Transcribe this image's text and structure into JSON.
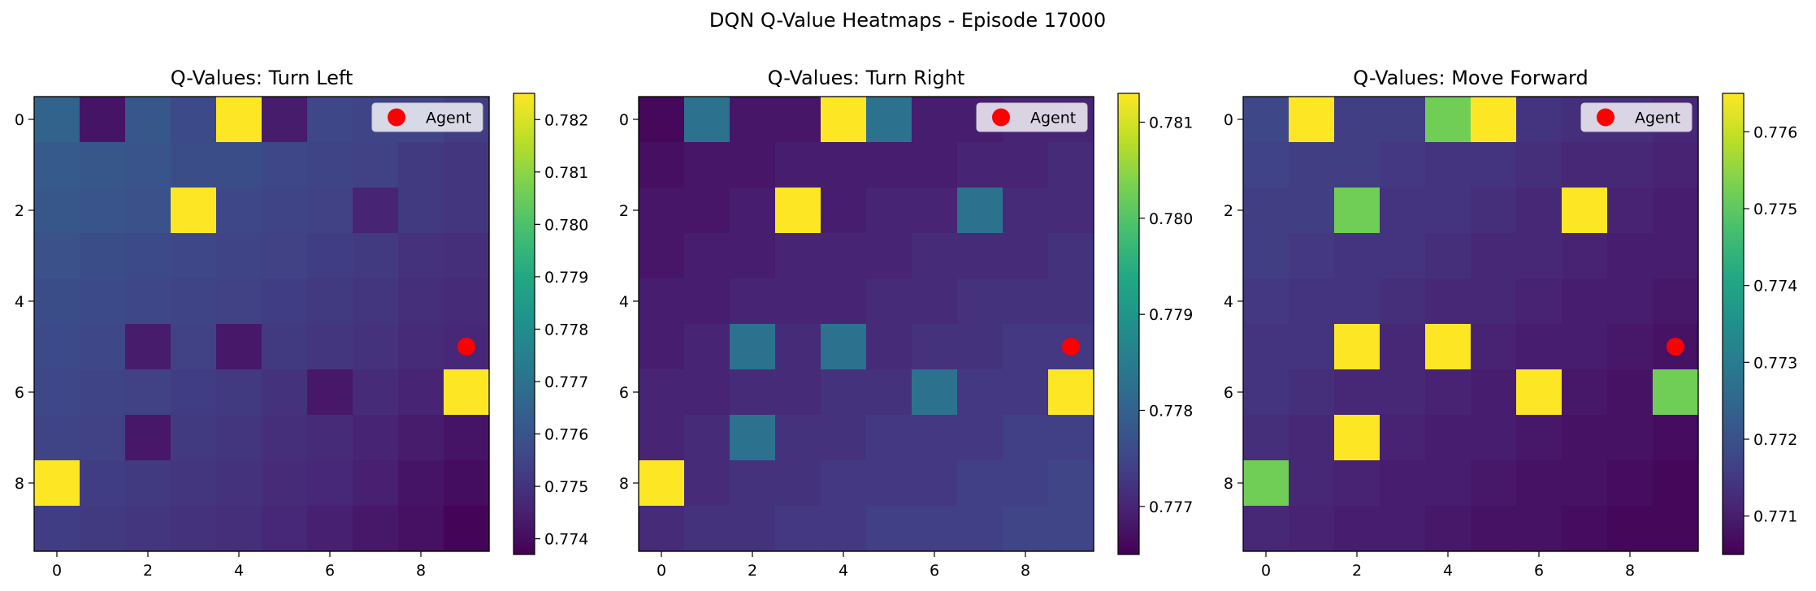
{
  "chart_data": {
    "suptitle": "DQN Q-Value Heatmaps - Episode 17000",
    "type": "heatmap",
    "colormap": "viridis",
    "grid_size": [
      10,
      10
    ],
    "agent": {
      "label": "Agent",
      "row": 5,
      "col": 9,
      "color": "#ff0000"
    },
    "panels": [
      {
        "title": "Q-Values: Turn Left",
        "vmin": 0.7737,
        "vmax": 0.7825,
        "colorbar_ticks": [
          "0.774",
          "0.775",
          "0.776",
          "0.777",
          "0.778",
          "0.779",
          "0.780",
          "0.781",
          "0.782"
        ],
        "colorbar_tick_values": [
          0.774,
          0.775,
          0.776,
          0.777,
          0.778,
          0.779,
          0.78,
          0.781,
          0.782
        ],
        "x_ticks": [
          "0",
          "2",
          "4",
          "6",
          "8"
        ],
        "y_ticks": [
          "0",
          "2",
          "4",
          "6",
          "8"
        ],
        "values": [
          [
            0.7765,
            0.7742,
            0.7761,
            0.7757,
            0.7825,
            0.7744,
            0.7756,
            0.7755,
            0.7755,
            0.7753
          ],
          [
            0.7762,
            0.7761,
            0.776,
            0.7758,
            0.7758,
            0.7756,
            0.7755,
            0.7754,
            0.7752,
            0.7751
          ],
          [
            0.7761,
            0.776,
            0.7759,
            0.7825,
            0.7756,
            0.7755,
            0.7754,
            0.7746,
            0.7752,
            0.7751
          ],
          [
            0.7759,
            0.7758,
            0.7757,
            0.7756,
            0.7755,
            0.7754,
            0.7753,
            0.7752,
            0.775,
            0.7749
          ],
          [
            0.7758,
            0.7757,
            0.7756,
            0.7755,
            0.7754,
            0.7753,
            0.7752,
            0.7751,
            0.7749,
            0.7748
          ],
          [
            0.7757,
            0.7756,
            0.7744,
            0.7754,
            0.7743,
            0.7752,
            0.7751,
            0.775,
            0.7748,
            0.7747
          ],
          [
            0.7756,
            0.7755,
            0.7754,
            0.7753,
            0.7752,
            0.775,
            0.7743,
            0.7748,
            0.7746,
            0.7825
          ],
          [
            0.7755,
            0.7754,
            0.7743,
            0.7752,
            0.7751,
            0.7749,
            0.7748,
            0.7746,
            0.7744,
            0.7742
          ],
          [
            0.7825,
            0.7753,
            0.7752,
            0.7751,
            0.775,
            0.7748,
            0.7747,
            0.7745,
            0.7742,
            0.774
          ],
          [
            0.7753,
            0.7752,
            0.7751,
            0.775,
            0.7749,
            0.7747,
            0.7745,
            0.7743,
            0.7741,
            0.7738
          ]
        ]
      },
      {
        "title": "Q-Values: Turn Right",
        "vmin": 0.7765,
        "vmax": 0.7813,
        "colorbar_ticks": [
          "0.777",
          "0.778",
          "0.779",
          "0.780",
          "0.781"
        ],
        "colorbar_tick_values": [
          0.777,
          0.778,
          0.779,
          0.78,
          0.781
        ],
        "x_ticks": [
          "0",
          "2",
          "4",
          "6",
          "8"
        ],
        "y_ticks": [
          "0",
          "2",
          "4",
          "6",
          "8"
        ],
        "values": [
          [
            0.7766,
            0.7783,
            0.7768,
            0.7768,
            0.7813,
            0.7783,
            0.7769,
            0.7769,
            0.777,
            0.777
          ],
          [
            0.7767,
            0.7768,
            0.7768,
            0.7769,
            0.7769,
            0.7769,
            0.7769,
            0.777,
            0.777,
            0.7771
          ],
          [
            0.7768,
            0.7768,
            0.7769,
            0.7813,
            0.7769,
            0.777,
            0.777,
            0.7783,
            0.7771,
            0.7771
          ],
          [
            0.7768,
            0.7769,
            0.7769,
            0.777,
            0.777,
            0.777,
            0.7771,
            0.7771,
            0.7771,
            0.7772
          ],
          [
            0.7769,
            0.7769,
            0.777,
            0.777,
            0.777,
            0.7771,
            0.7771,
            0.7772,
            0.7772,
            0.7772
          ],
          [
            0.7769,
            0.777,
            0.7783,
            0.7771,
            0.7783,
            0.7771,
            0.7772,
            0.7772,
            0.7773,
            0.7773
          ],
          [
            0.777,
            0.777,
            0.7771,
            0.7771,
            0.7772,
            0.7772,
            0.7783,
            0.7773,
            0.7773,
            0.7813
          ],
          [
            0.777,
            0.7771,
            0.7783,
            0.7772,
            0.7772,
            0.7773,
            0.7773,
            0.7773,
            0.7774,
            0.7774
          ],
          [
            0.7813,
            0.7771,
            0.7772,
            0.7772,
            0.7773,
            0.7773,
            0.7773,
            0.7774,
            0.7774,
            0.7775
          ],
          [
            0.7771,
            0.7772,
            0.7772,
            0.7773,
            0.7773,
            0.7774,
            0.7774,
            0.7774,
            0.7775,
            0.7775
          ]
        ]
      },
      {
        "title": "Q-Values: Move Forward",
        "vmin": 0.7705,
        "vmax": 0.7765,
        "colorbar_ticks": [
          "0.771",
          "0.772",
          "0.773",
          "0.774",
          "0.775",
          "0.776"
        ],
        "colorbar_tick_values": [
          0.771,
          0.772,
          0.773,
          0.774,
          0.775,
          0.776
        ],
        "x_ticks": [
          "0",
          "2",
          "4",
          "6",
          "8"
        ],
        "y_ticks": [
          "0",
          "2",
          "4",
          "6",
          "8"
        ],
        "values": [
          [
            0.7718,
            0.7765,
            0.7716,
            0.7716,
            0.7752,
            0.7765,
            0.7714,
            0.7713,
            0.7713,
            0.7712
          ],
          [
            0.7717,
            0.7716,
            0.7716,
            0.7715,
            0.7714,
            0.7714,
            0.7713,
            0.7712,
            0.7712,
            0.7711
          ],
          [
            0.7716,
            0.7716,
            0.7752,
            0.7714,
            0.7714,
            0.7713,
            0.7712,
            0.7765,
            0.7711,
            0.771
          ],
          [
            0.7716,
            0.7715,
            0.7714,
            0.7714,
            0.7713,
            0.7712,
            0.7712,
            0.7711,
            0.771,
            0.771
          ],
          [
            0.7715,
            0.7714,
            0.7714,
            0.7713,
            0.7712,
            0.7712,
            0.7711,
            0.771,
            0.771,
            0.7709
          ],
          [
            0.7714,
            0.7714,
            0.7765,
            0.7712,
            0.7765,
            0.7711,
            0.771,
            0.771,
            0.7709,
            0.7708
          ],
          [
            0.7714,
            0.7713,
            0.7712,
            0.7712,
            0.7711,
            0.771,
            0.7765,
            0.7709,
            0.7708,
            0.7752
          ],
          [
            0.7713,
            0.7712,
            0.7765,
            0.7711,
            0.771,
            0.771,
            0.7709,
            0.7708,
            0.7708,
            0.7707
          ],
          [
            0.7752,
            0.7712,
            0.7711,
            0.771,
            0.771,
            0.7709,
            0.7708,
            0.7708,
            0.7707,
            0.7706
          ],
          [
            0.7712,
            0.7711,
            0.771,
            0.771,
            0.7709,
            0.7708,
            0.7708,
            0.7707,
            0.7706,
            0.7706
          ]
        ]
      }
    ]
  }
}
